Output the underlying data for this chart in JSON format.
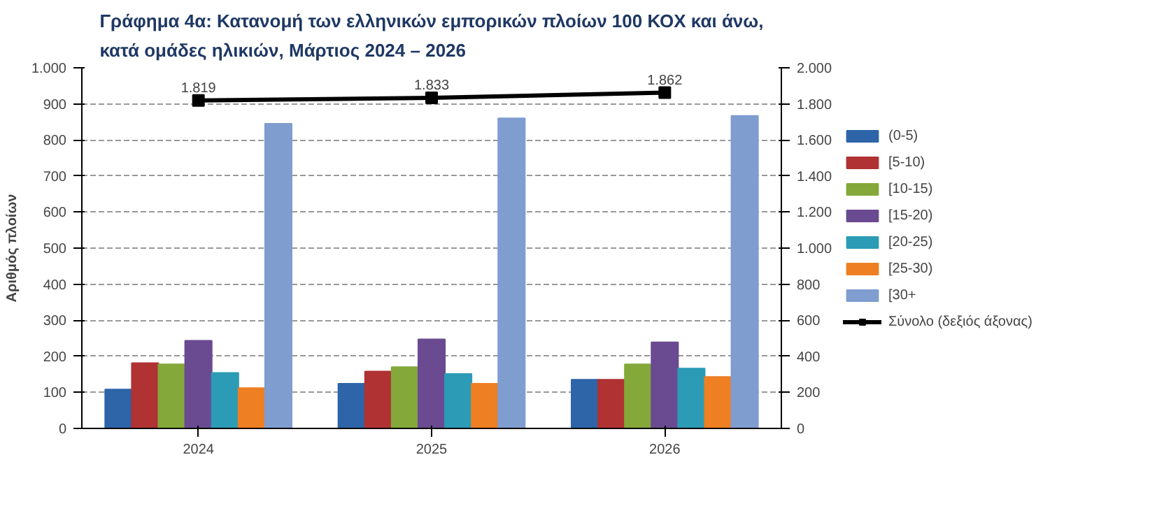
{
  "chart_data": {
    "type": "bar",
    "title": "Γράφημα 4α: Κατανομή των ελληνικών εμπορικών πλοίων 100 ΚΟΧ και άνω,\nκατά ομάδες ηλικιών, Μάρτιος 2024 – 2026",
    "ylabel": "Αριθμός πλοίων",
    "categories": [
      "2024",
      "2025",
      "2026"
    ],
    "series": [
      {
        "name": "(0-5)",
        "color": "#2e64a8",
        "values": [
          108,
          124,
          135
        ]
      },
      {
        "name": "[5-10)",
        "color": "#b03232",
        "values": [
          181,
          158,
          135
        ]
      },
      {
        "name": "[10-15)",
        "color": "#84a83a",
        "values": [
          178,
          170,
          178
        ]
      },
      {
        "name": "[15-20)",
        "color": "#6a4a91",
        "values": [
          243,
          247,
          239
        ]
      },
      {
        "name": "[20-25)",
        "color": "#2c9bb5",
        "values": [
          154,
          151,
          166
        ]
      },
      {
        "name": "[25-30)",
        "color": "#ee7f22",
        "values": [
          112,
          124,
          143
        ]
      },
      {
        "name": "[30+",
        "color": "#7f9dcf",
        "values": [
          845,
          860,
          867
        ]
      },
      {
        "name": "Σύνολο (δεξιός άξονας)",
        "type": "line",
        "axis": "y2",
        "color": "#000000",
        "marker": "square",
        "values": [
          1819,
          1833,
          1862
        ],
        "value_labels": [
          "1.819",
          "1.833",
          "1.862"
        ]
      }
    ],
    "ylim": [
      0,
      1000
    ],
    "yticks": [
      0,
      100,
      200,
      300,
      400,
      500,
      600,
      700,
      800,
      900,
      {
        "value": 1000,
        "label": "1.000"
      }
    ],
    "y2lim": [
      0,
      2000
    ],
    "y2ticks": [
      0,
      200,
      400,
      600,
      800,
      {
        "value": 1000,
        "label": "1.000"
      },
      {
        "value": 1200,
        "label": "1.200"
      },
      {
        "value": 1400,
        "label": "1.400"
      },
      {
        "value": 1600,
        "label": "1.600"
      },
      {
        "value": 1800,
        "label": "1.800"
      },
      {
        "value": 2000,
        "label": "2.000"
      }
    ],
    "grid": "y",
    "legend": "right"
  }
}
